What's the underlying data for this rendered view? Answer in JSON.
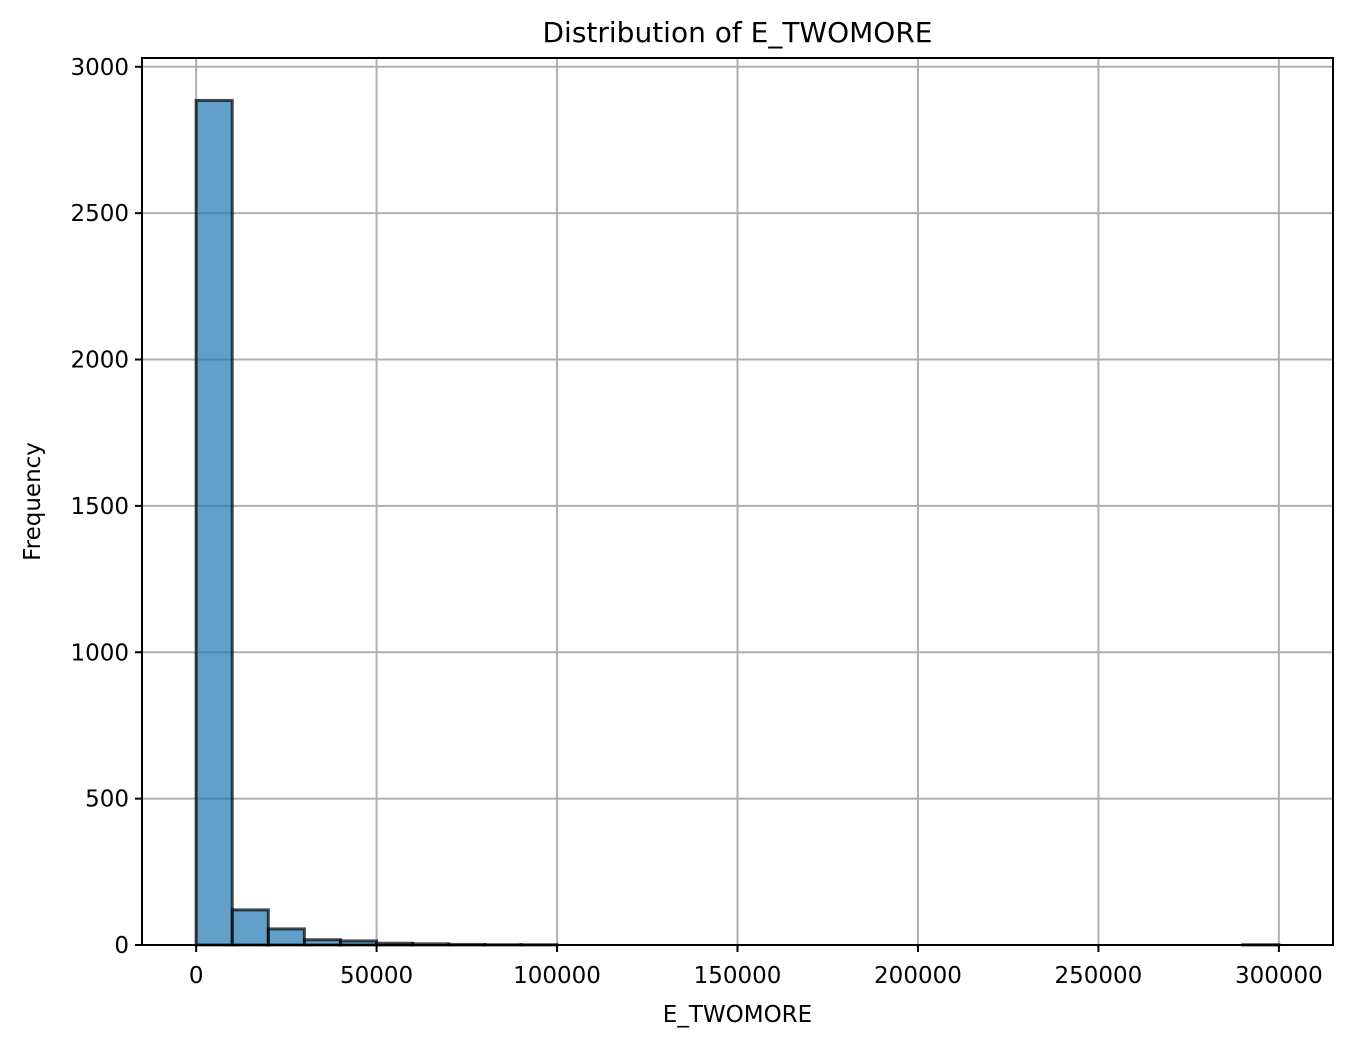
{
  "chart_data": {
    "type": "bar",
    "title": "Distribution of E_TWOMORE",
    "xlabel": "E_TWOMORE",
    "ylabel": "Frequency",
    "xlim": [
      -15000,
      315000
    ],
    "ylim": [
      0,
      3030
    ],
    "xticks": [
      0,
      50000,
      100000,
      150000,
      200000,
      250000,
      300000
    ],
    "xtick_labels": [
      "0",
      "50000",
      "100000",
      "150000",
      "200000",
      "250000",
      "300000"
    ],
    "yticks": [
      0,
      500,
      1000,
      1500,
      2000,
      2500,
      3000
    ],
    "ytick_labels": [
      "0",
      "500",
      "1000",
      "1500",
      "2000",
      "2500",
      "3000"
    ],
    "grid": true,
    "bar_color": "#1f77b4",
    "edge_color": "#000000",
    "bins": [
      {
        "x0": 0,
        "x1": 10000,
        "count": 2885
      },
      {
        "x0": 10000,
        "x1": 20000,
        "count": 120
      },
      {
        "x0": 20000,
        "x1": 30000,
        "count": 55
      },
      {
        "x0": 30000,
        "x1": 40000,
        "count": 18
      },
      {
        "x0": 40000,
        "x1": 50000,
        "count": 14
      },
      {
        "x0": 50000,
        "x1": 60000,
        "count": 6
      },
      {
        "x0": 60000,
        "x1": 70000,
        "count": 4
      },
      {
        "x0": 70000,
        "x1": 80000,
        "count": 2
      },
      {
        "x0": 80000,
        "x1": 90000,
        "count": 1
      },
      {
        "x0": 90000,
        "x1": 100000,
        "count": 1
      },
      {
        "x0": 100000,
        "x1": 110000,
        "count": 0
      },
      {
        "x0": 110000,
        "x1": 120000,
        "count": 0
      },
      {
        "x0": 120000,
        "x1": 130000,
        "count": 0
      },
      {
        "x0": 130000,
        "x1": 140000,
        "count": 0
      },
      {
        "x0": 140000,
        "x1": 150000,
        "count": 0
      },
      {
        "x0": 150000,
        "x1": 160000,
        "count": 0
      },
      {
        "x0": 160000,
        "x1": 170000,
        "count": 0
      },
      {
        "x0": 170000,
        "x1": 180000,
        "count": 0
      },
      {
        "x0": 180000,
        "x1": 190000,
        "count": 0
      },
      {
        "x0": 190000,
        "x1": 200000,
        "count": 0
      },
      {
        "x0": 200000,
        "x1": 210000,
        "count": 0
      },
      {
        "x0": 210000,
        "x1": 220000,
        "count": 0
      },
      {
        "x0": 220000,
        "x1": 230000,
        "count": 0
      },
      {
        "x0": 230000,
        "x1": 240000,
        "count": 0
      },
      {
        "x0": 240000,
        "x1": 250000,
        "count": 0
      },
      {
        "x0": 250000,
        "x1": 260000,
        "count": 0
      },
      {
        "x0": 260000,
        "x1": 270000,
        "count": 0
      },
      {
        "x0": 270000,
        "x1": 280000,
        "count": 0
      },
      {
        "x0": 280000,
        "x1": 290000,
        "count": 0
      },
      {
        "x0": 290000,
        "x1": 300000,
        "count": 1
      }
    ]
  }
}
